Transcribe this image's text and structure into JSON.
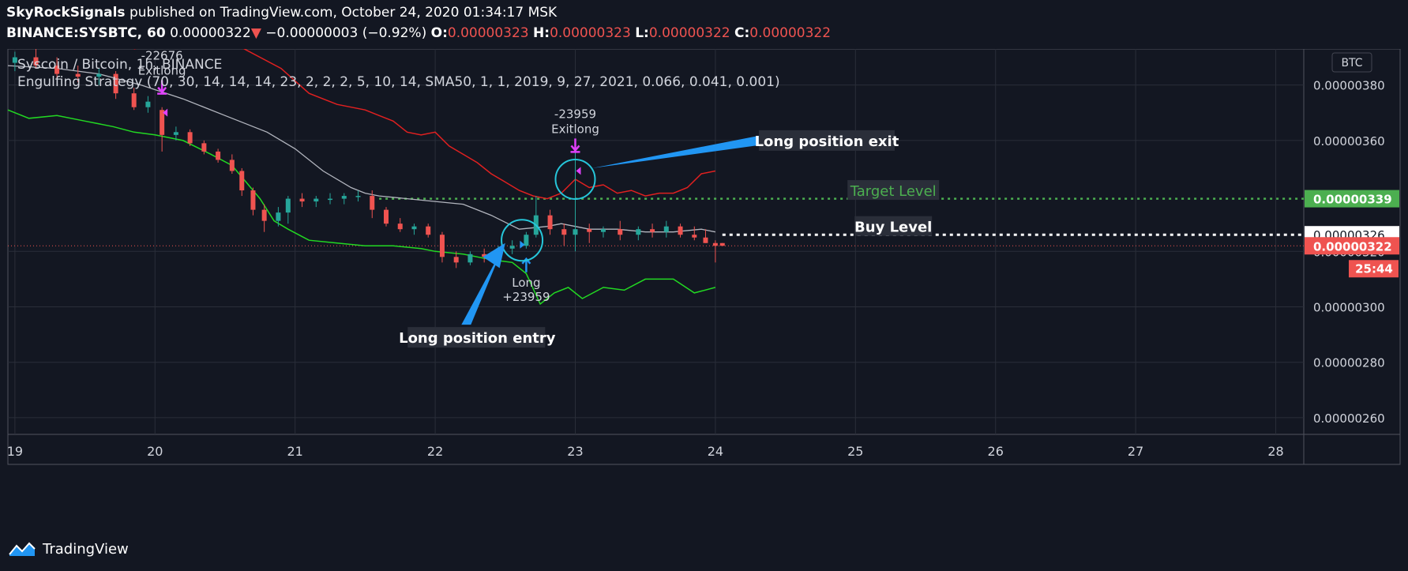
{
  "header": {
    "author": "SkyRockSignals",
    "published_text": "published on TradingView.com, October 24, 2020 01:34:17 MSK",
    "symbol": "BINANCE:SYSBTC, 60",
    "last_price": "0.00000322",
    "change_arrow": "▼",
    "change": "−0.00000003 (−0.92%)",
    "o_label": "O:",
    "o_value": "0.00000323",
    "h_label": "H:",
    "h_value": "0.00000323",
    "l_label": "L:",
    "l_value": "0.00000322",
    "c_label": "C:",
    "c_value": "0.00000322"
  },
  "chart_header": {
    "title": "Syscoin / Bitcoin, 1h, BINANCE",
    "strategy": "Engulfing Strategy (70, 30, 14, 14, 14, 23, 2, 2, 2, 5, 10, 14, SMA50, 1, 1, 2019, 9, 27, 2021, 0.066, 0.041, 0.001)",
    "currency": "BTC"
  },
  "footer": {
    "brand": "TradingView"
  },
  "colors": {
    "background": "#131722",
    "grid": "#2a2e39",
    "bull": "#26a69a",
    "bear": "#ef5350",
    "upper_band": "#e02020",
    "lower_band": "#22d822",
    "sma": "#b2b5be",
    "target": "#4caf50",
    "buy": "#ffffff",
    "marker": "#e040fb",
    "annotation_arrow": "#2196f3",
    "circle": "#26c6da"
  },
  "chart_data": {
    "type": "candlestick",
    "x_axis": {
      "tick_labels": [
        "19",
        "20",
        "21",
        "22",
        "23",
        "24",
        "25",
        "26",
        "27",
        "28"
      ],
      "range": [
        18.95,
        28.2
      ]
    },
    "y_axis": {
      "tick_labels": [
        "0.00000380",
        "0.00000360",
        "0.00000320",
        "0.00000300",
        "0.00000280",
        "0.00000260"
      ],
      "tick_values": [
        3.8,
        3.6,
        3.2,
        3.0,
        2.8,
        2.6
      ],
      "range": [
        2.54,
        3.93
      ],
      "unit": "×1e-6 BTC"
    },
    "price_levels": [
      {
        "name": "Target Level",
        "value": 3.39,
        "axis_label": "0.00000339",
        "style": "dotted",
        "color": "#4caf50"
      },
      {
        "name": "Buy Level",
        "value": 3.26,
        "axis_label": "0.00000326",
        "style": "dotted",
        "color": "#ffffff"
      },
      {
        "name": "Last Price",
        "value": 3.22,
        "axis_label": "0.00000322",
        "style": "dotted",
        "color": "#ef5350"
      }
    ],
    "countdown": "25:44",
    "candles": [
      {
        "t": 19.0,
        "o": 3.88,
        "h": 3.92,
        "l": 3.85,
        "c": 3.9
      },
      {
        "t": 19.15,
        "o": 3.9,
        "h": 3.93,
        "l": 3.86,
        "c": 3.87
      },
      {
        "t": 19.3,
        "o": 3.87,
        "h": 3.9,
        "l": 3.82,
        "c": 3.84
      },
      {
        "t": 19.45,
        "o": 3.84,
        "h": 3.87,
        "l": 3.81,
        "c": 3.83
      },
      {
        "t": 19.6,
        "o": 3.83,
        "h": 3.86,
        "l": 3.8,
        "c": 3.84
      },
      {
        "t": 19.72,
        "o": 3.84,
        "h": 3.85,
        "l": 3.75,
        "c": 3.77
      },
      {
        "t": 19.85,
        "o": 3.77,
        "h": 3.79,
        "l": 3.71,
        "c": 3.72
      },
      {
        "t": 19.95,
        "o": 3.72,
        "h": 3.76,
        "l": 3.7,
        "c": 3.74
      },
      {
        "t": 20.05,
        "o": 3.71,
        "h": 3.72,
        "l": 3.56,
        "c": 3.62
      },
      {
        "t": 20.15,
        "o": 3.62,
        "h": 3.65,
        "l": 3.6,
        "c": 3.63
      },
      {
        "t": 20.25,
        "o": 3.63,
        "h": 3.64,
        "l": 3.58,
        "c": 3.59
      },
      {
        "t": 20.35,
        "o": 3.59,
        "h": 3.6,
        "l": 3.55,
        "c": 3.56
      },
      {
        "t": 20.45,
        "o": 3.56,
        "h": 3.57,
        "l": 3.52,
        "c": 3.53
      },
      {
        "t": 20.55,
        "o": 3.53,
        "h": 3.55,
        "l": 3.48,
        "c": 3.49
      },
      {
        "t": 20.62,
        "o": 3.49,
        "h": 3.5,
        "l": 3.4,
        "c": 3.42
      },
      {
        "t": 20.7,
        "o": 3.42,
        "h": 3.43,
        "l": 3.33,
        "c": 3.35
      },
      {
        "t": 20.78,
        "o": 3.35,
        "h": 3.37,
        "l": 3.27,
        "c": 3.31
      },
      {
        "t": 20.88,
        "o": 3.31,
        "h": 3.36,
        "l": 3.29,
        "c": 3.34
      },
      {
        "t": 20.95,
        "o": 3.34,
        "h": 3.4,
        "l": 3.3,
        "c": 3.39
      },
      {
        "t": 21.05,
        "o": 3.39,
        "h": 3.41,
        "l": 3.36,
        "c": 3.38
      },
      {
        "t": 21.15,
        "o": 3.38,
        "h": 3.4,
        "l": 3.36,
        "c": 3.39
      },
      {
        "t": 21.25,
        "o": 3.39,
        "h": 3.41,
        "l": 3.37,
        "c": 3.39
      },
      {
        "t": 21.35,
        "o": 3.39,
        "h": 3.41,
        "l": 3.37,
        "c": 3.4
      },
      {
        "t": 21.45,
        "o": 3.4,
        "h": 3.42,
        "l": 3.38,
        "c": 3.4
      },
      {
        "t": 21.55,
        "o": 3.4,
        "h": 3.42,
        "l": 3.32,
        "c": 3.35
      },
      {
        "t": 21.65,
        "o": 3.35,
        "h": 3.36,
        "l": 3.29,
        "c": 3.3
      },
      {
        "t": 21.75,
        "o": 3.3,
        "h": 3.32,
        "l": 3.27,
        "c": 3.28
      },
      {
        "t": 21.85,
        "o": 3.28,
        "h": 3.3,
        "l": 3.26,
        "c": 3.29
      },
      {
        "t": 21.95,
        "o": 3.29,
        "h": 3.3,
        "l": 3.25,
        "c": 3.26
      },
      {
        "t": 22.05,
        "o": 3.26,
        "h": 3.27,
        "l": 3.16,
        "c": 3.18
      },
      {
        "t": 22.15,
        "o": 3.18,
        "h": 3.2,
        "l": 3.14,
        "c": 3.16
      },
      {
        "t": 22.25,
        "o": 3.16,
        "h": 3.2,
        "l": 3.15,
        "c": 3.19
      },
      {
        "t": 22.35,
        "o": 3.19,
        "h": 3.21,
        "l": 3.16,
        "c": 3.18
      },
      {
        "t": 22.45,
        "o": 3.18,
        "h": 3.22,
        "l": 3.17,
        "c": 3.21
      },
      {
        "t": 22.55,
        "o": 3.21,
        "h": 3.24,
        "l": 3.19,
        "c": 3.22
      },
      {
        "t": 22.65,
        "o": 3.22,
        "h": 3.27,
        "l": 3.21,
        "c": 3.26
      },
      {
        "t": 22.72,
        "o": 3.26,
        "h": 3.4,
        "l": 3.25,
        "c": 3.33
      },
      {
        "t": 22.82,
        "o": 3.33,
        "h": 3.35,
        "l": 3.26,
        "c": 3.28
      },
      {
        "t": 22.92,
        "o": 3.28,
        "h": 3.3,
        "l": 3.22,
        "c": 3.26
      },
      {
        "t": 23.0,
        "o": 3.26,
        "h": 3.56,
        "l": 3.2,
        "c": 3.28
      },
      {
        "t": 23.1,
        "o": 3.28,
        "h": 3.3,
        "l": 3.23,
        "c": 3.27
      },
      {
        "t": 23.2,
        "o": 3.27,
        "h": 3.29,
        "l": 3.25,
        "c": 3.28
      },
      {
        "t": 23.32,
        "o": 3.28,
        "h": 3.31,
        "l": 3.24,
        "c": 3.26
      },
      {
        "t": 23.45,
        "o": 3.26,
        "h": 3.29,
        "l": 3.24,
        "c": 3.28
      },
      {
        "t": 23.55,
        "o": 3.28,
        "h": 3.3,
        "l": 3.25,
        "c": 3.27
      },
      {
        "t": 23.65,
        "o": 3.27,
        "h": 3.31,
        "l": 3.25,
        "c": 3.29
      },
      {
        "t": 23.75,
        "o": 3.29,
        "h": 3.3,
        "l": 3.25,
        "c": 3.26
      },
      {
        "t": 23.85,
        "o": 3.26,
        "h": 3.29,
        "l": 3.24,
        "c": 3.25
      },
      {
        "t": 23.93,
        "o": 3.25,
        "h": 3.28,
        "l": 3.23,
        "c": 3.23
      },
      {
        "t": 24.0,
        "o": 3.23,
        "h": 3.24,
        "l": 3.16,
        "c": 3.22
      },
      {
        "t": 24.05,
        "o": 3.23,
        "h": 3.23,
        "l": 3.22,
        "c": 3.22
      }
    ],
    "series": [
      {
        "kind": "upper_band",
        "points": [
          [
            19.85,
            3.93
          ],
          [
            20.1,
            3.96
          ],
          [
            20.6,
            3.94
          ],
          [
            20.9,
            3.86
          ],
          [
            21.1,
            3.77
          ],
          [
            21.3,
            3.73
          ],
          [
            21.5,
            3.71
          ],
          [
            21.6,
            3.69
          ],
          [
            21.7,
            3.67
          ],
          [
            21.8,
            3.63
          ],
          [
            21.9,
            3.62
          ],
          [
            22.0,
            3.63
          ],
          [
            22.1,
            3.58
          ],
          [
            22.2,
            3.55
          ],
          [
            22.3,
            3.52
          ],
          [
            22.4,
            3.48
          ],
          [
            22.5,
            3.45
          ],
          [
            22.6,
            3.42
          ],
          [
            22.7,
            3.4
          ],
          [
            22.8,
            3.39
          ],
          [
            22.9,
            3.41
          ],
          [
            23.0,
            3.46
          ],
          [
            23.1,
            3.43
          ],
          [
            23.2,
            3.44
          ],
          [
            23.3,
            3.41
          ],
          [
            23.4,
            3.42
          ],
          [
            23.5,
            3.4
          ],
          [
            23.6,
            3.41
          ],
          [
            23.7,
            3.41
          ],
          [
            23.8,
            3.43
          ],
          [
            23.9,
            3.48
          ],
          [
            24.0,
            3.49
          ]
        ]
      },
      {
        "kind": "lower_band",
        "points": [
          [
            18.95,
            3.71
          ],
          [
            19.1,
            3.68
          ],
          [
            19.3,
            3.69
          ],
          [
            19.5,
            3.67
          ],
          [
            19.7,
            3.65
          ],
          [
            19.85,
            3.63
          ],
          [
            20.0,
            3.62
          ],
          [
            20.2,
            3.6
          ],
          [
            20.4,
            3.55
          ],
          [
            20.55,
            3.51
          ],
          [
            20.65,
            3.45
          ],
          [
            20.75,
            3.39
          ],
          [
            20.85,
            3.31
          ],
          [
            20.95,
            3.28
          ],
          [
            21.1,
            3.24
          ],
          [
            21.3,
            3.23
          ],
          [
            21.5,
            3.22
          ],
          [
            21.7,
            3.22
          ],
          [
            21.9,
            3.21
          ],
          [
            22.0,
            3.2
          ],
          [
            22.2,
            3.19
          ],
          [
            22.4,
            3.17
          ],
          [
            22.55,
            3.16
          ],
          [
            22.65,
            3.12
          ],
          [
            22.75,
            3.01
          ],
          [
            22.85,
            3.05
          ],
          [
            22.95,
            3.07
          ],
          [
            23.05,
            3.03
          ],
          [
            23.2,
            3.07
          ],
          [
            23.35,
            3.06
          ],
          [
            23.5,
            3.1
          ],
          [
            23.7,
            3.1
          ],
          [
            23.85,
            3.05
          ],
          [
            24.0,
            3.07
          ]
        ]
      },
      {
        "kind": "sma50",
        "points": [
          [
            18.95,
            3.87
          ],
          [
            19.3,
            3.86
          ],
          [
            19.6,
            3.84
          ],
          [
            19.9,
            3.8
          ],
          [
            20.2,
            3.75
          ],
          [
            20.5,
            3.69
          ],
          [
            20.8,
            3.63
          ],
          [
            21.0,
            3.57
          ],
          [
            21.2,
            3.49
          ],
          [
            21.4,
            3.43
          ],
          [
            21.5,
            3.41
          ],
          [
            21.6,
            3.4
          ],
          [
            21.8,
            3.39
          ],
          [
            22.0,
            3.38
          ],
          [
            22.2,
            3.37
          ],
          [
            22.4,
            3.33
          ],
          [
            22.6,
            3.28
          ],
          [
            22.8,
            3.29
          ],
          [
            22.9,
            3.3
          ],
          [
            23.0,
            3.29
          ],
          [
            23.1,
            3.28
          ],
          [
            23.3,
            3.28
          ],
          [
            23.5,
            3.27
          ],
          [
            23.7,
            3.27
          ],
          [
            23.9,
            3.28
          ],
          [
            24.0,
            3.27
          ]
        ]
      }
    ],
    "trade_markers": [
      {
        "type": "exit",
        "t": 20.05,
        "price": 3.76,
        "value_label": "-22676",
        "label": "Exitlong"
      },
      {
        "type": "exit",
        "t": 23.0,
        "price": 3.55,
        "value_label": "-23959",
        "label": "Exitlong"
      },
      {
        "type": "entry",
        "t": 22.65,
        "price": 3.21,
        "value_label": "+23959",
        "label": "Long"
      }
    ],
    "annotations": [
      {
        "text": "Long position exit",
        "t": 24.75,
        "price": 3.6
      },
      {
        "text": "Long position entry",
        "t": 22.3,
        "price": 2.89
      },
      {
        "text": "Target Level",
        "t": 25.27,
        "price": 3.42
      },
      {
        "text": "Buy Level",
        "t": 25.27,
        "price": 3.29
      }
    ]
  }
}
